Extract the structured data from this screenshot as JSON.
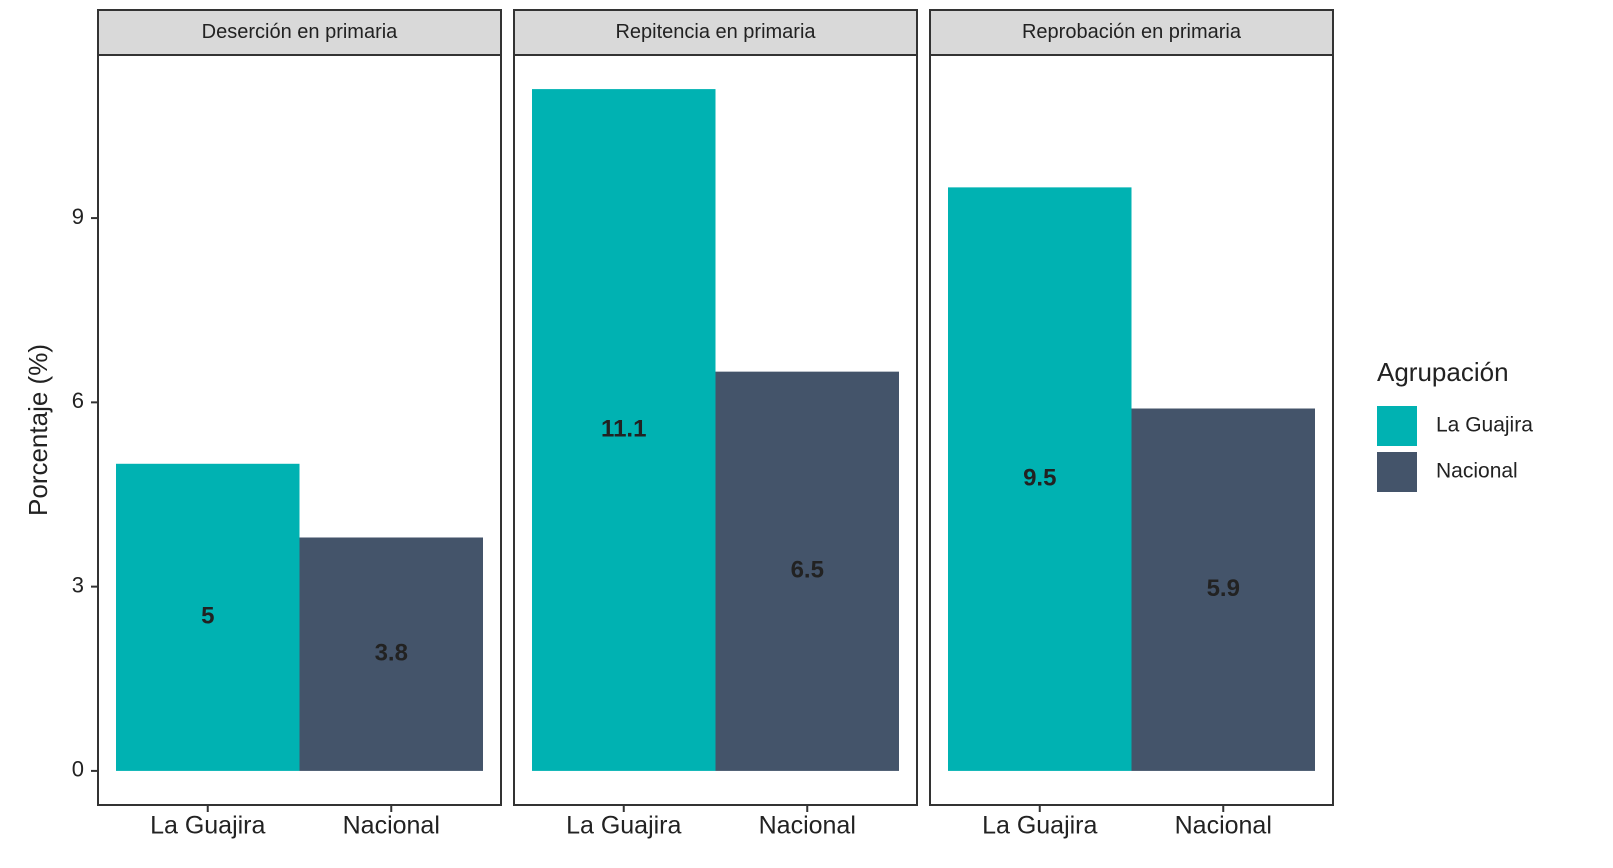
{
  "chart_data": [
    {
      "type": "bar",
      "title": "Deserción en primaria",
      "categories": [
        "La Guajira",
        "Nacional"
      ],
      "values": [
        5,
        3.8
      ],
      "ylim": [
        -0.555,
        11.655
      ],
      "yticks": [
        0,
        3,
        6,
        9
      ]
    },
    {
      "type": "bar",
      "title": "Repitencia en primaria",
      "categories": [
        "La Guajira",
        "Nacional"
      ],
      "values": [
        11.1,
        6.5
      ],
      "ylim": [
        -0.555,
        11.655
      ],
      "yticks": [
        0,
        3,
        6,
        9
      ]
    },
    {
      "type": "bar",
      "title": "Reprobación en primaria",
      "categories": [
        "La Guajira",
        "Nacional"
      ],
      "values": [
        9.5,
        5.9
      ],
      "ylim": [
        -0.555,
        11.655
      ],
      "yticks": [
        0,
        3,
        6,
        9
      ]
    }
  ],
  "y_label": "Porcentaje (%)",
  "legend": {
    "title": "Agrupación",
    "entries": [
      {
        "name": "La Guajira",
        "color": "#00b2b2"
      },
      {
        "name": "Nacional",
        "color": "#44546a"
      }
    ]
  }
}
